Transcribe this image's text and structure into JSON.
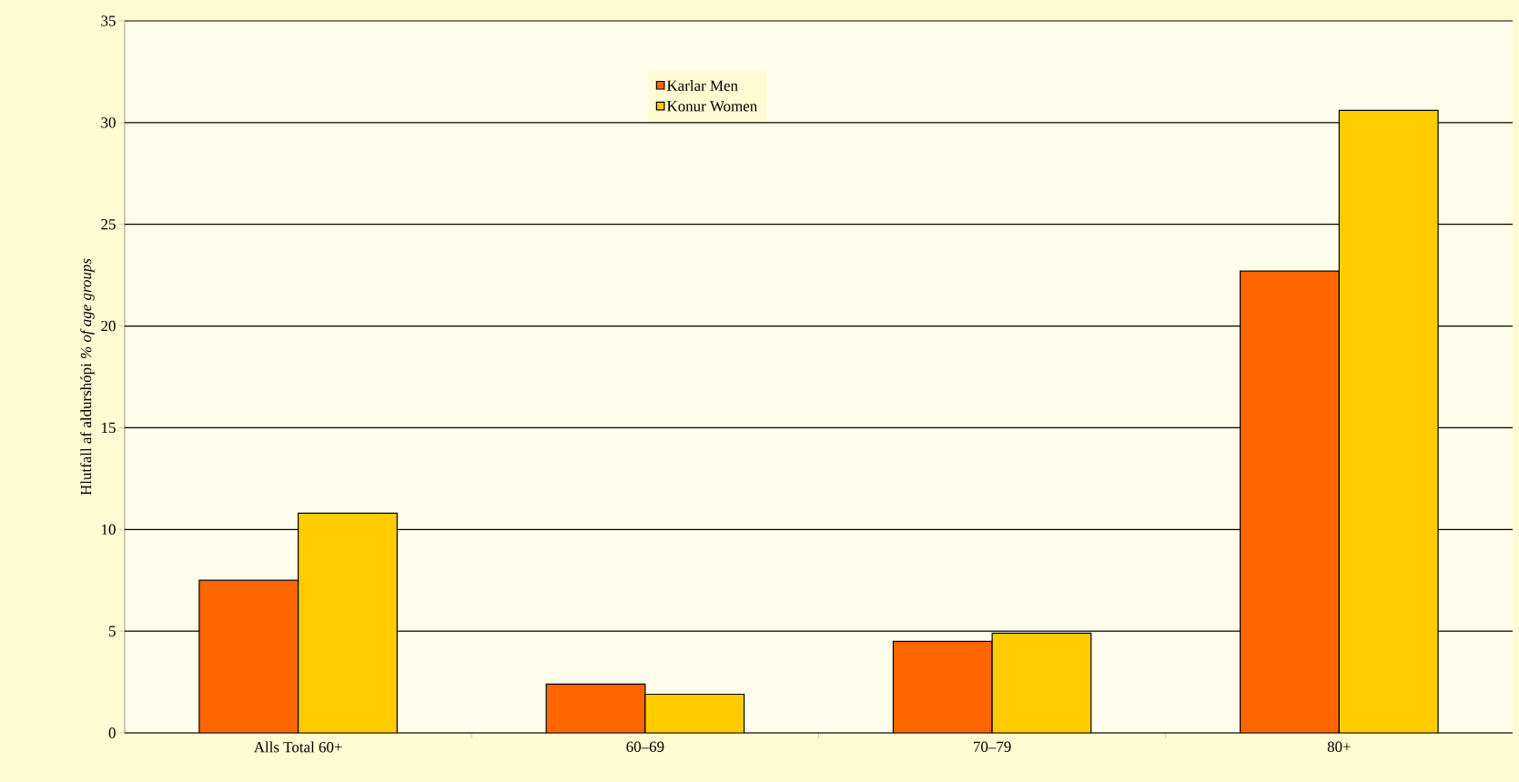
{
  "chart_data": {
    "type": "bar",
    "ylabel": "Hlutfall af aldurshópi    *% of age groups*",
    "categories": [
      "Alls Total 60+",
      "60–69",
      "70–79",
      "80+"
    ],
    "series": [
      {
        "name": "Karlar Men",
        "color": "#ff6600",
        "values": [
          7.5,
          2.4,
          4.5,
          22.7
        ]
      },
      {
        "name": "Konur Women",
        "color": "#ffcc00",
        "values": [
          10.8,
          1.9,
          4.9,
          30.6
        ]
      }
    ],
    "ylim": [
      0,
      35
    ],
    "yticks": [
      0,
      5,
      10,
      15,
      20,
      25,
      30,
      35
    ],
    "grid": "y",
    "legend": "top"
  }
}
